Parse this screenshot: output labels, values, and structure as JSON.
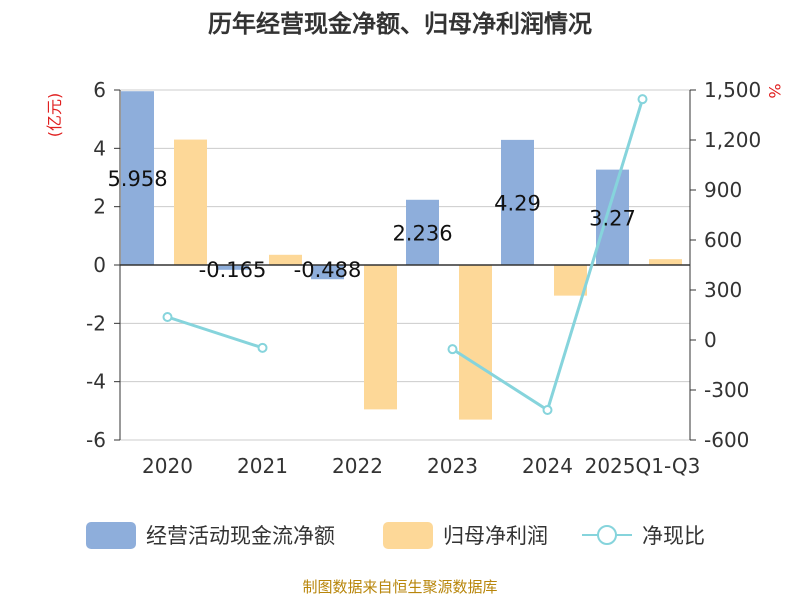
{
  "chart_data": {
    "type": "bar",
    "title": "历年经营现金净额、归母净利润情况",
    "categories": [
      "2020",
      "2021",
      "2022",
      "2023",
      "2024",
      "2025Q1-Q3"
    ],
    "series": [
      {
        "name": "经营活动现金流净额",
        "type": "bar",
        "axis": "left",
        "color": "#8eaedb",
        "values": [
          5.958,
          -0.165,
          -0.488,
          2.236,
          4.29,
          3.27
        ],
        "labels": [
          "5.958",
          "-0.165",
          "-0.488",
          "2.236",
          "4.29",
          "3.27"
        ]
      },
      {
        "name": "归母净利润",
        "type": "bar",
        "axis": "left",
        "color": "#fdd898",
        "values": [
          4.3,
          0.35,
          -4.95,
          -5.3,
          -1.05,
          0.2
        ]
      },
      {
        "name": "净现比",
        "type": "line",
        "axis": "right",
        "color": "#86d4dc",
        "values": [
          138,
          -47,
          null,
          -55,
          -420,
          1445
        ]
      }
    ],
    "y_left": {
      "label": "(亿元)",
      "min": -6,
      "max": 6,
      "ticks": [
        "6",
        "4",
        "2",
        "0",
        "-2",
        "-4",
        "-6"
      ]
    },
    "y_right": {
      "label": "%",
      "min": -600,
      "max": 1500,
      "ticks": [
        "1,500",
        "1,200",
        "900",
        "600",
        "300",
        "0",
        "-300",
        "-600"
      ]
    },
    "source": "制图数据来自恒生聚源数据库"
  }
}
